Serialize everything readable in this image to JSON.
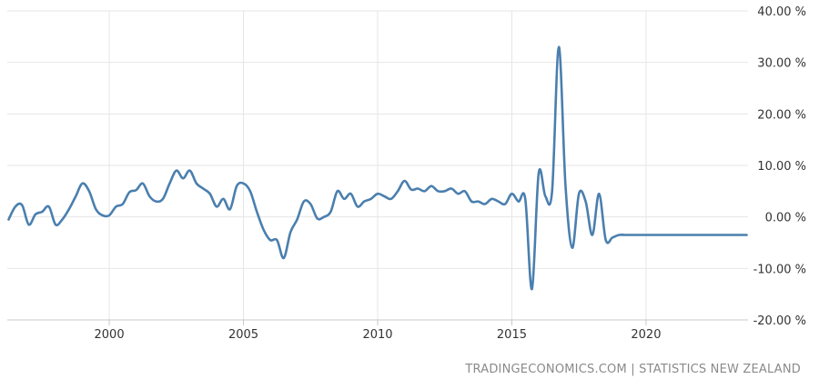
{
  "source_note": "TRADINGECONOMICS.COM | STATISTICS NEW ZEALAND",
  "colors": {
    "line": "#4a7fae",
    "grid": "#e6e6e6",
    "axis": "#c8c8c8",
    "text": "#333333"
  },
  "chart_data": {
    "type": "line",
    "title": "",
    "xlabel": "",
    "ylabel": "",
    "xlim": [
      1996.2,
      2023.8
    ],
    "ylim": [
      -20,
      40
    ],
    "grid": true,
    "x_ticks": [
      {
        "value": 2000,
        "label": "2000"
      },
      {
        "value": 2005,
        "label": "2005"
      },
      {
        "value": 2010,
        "label": "2010"
      },
      {
        "value": 2015,
        "label": "2015"
      },
      {
        "value": 2020,
        "label": "2020"
      }
    ],
    "y_ticks": [
      {
        "value": 40,
        "label": "40.00 %"
      },
      {
        "value": 30,
        "label": "30.00 %"
      },
      {
        "value": 20,
        "label": "20.00 %"
      },
      {
        "value": 10,
        "label": "10.00 %"
      },
      {
        "value": 0,
        "label": "0.00 %"
      },
      {
        "value": -10,
        "label": "-10.00 %"
      },
      {
        "value": -20,
        "label": "-20.00 %"
      }
    ],
    "series": [
      {
        "color": "#4a7fae",
        "x": [
          1996.25,
          1996.5,
          1996.75,
          1997.0,
          1997.25,
          1997.5,
          1997.75,
          1998.0,
          1998.25,
          1998.5,
          1998.75,
          1999.0,
          1999.25,
          1999.5,
          1999.75,
          2000.0,
          2000.25,
          2000.5,
          2000.75,
          2001.0,
          2001.25,
          2001.5,
          2001.75,
          2002.0,
          2002.25,
          2002.5,
          2002.75,
          2003.0,
          2003.25,
          2003.5,
          2003.75,
          2004.0,
          2004.25,
          2004.5,
          2004.75,
          2005.0,
          2005.25,
          2005.5,
          2005.75,
          2006.0,
          2006.25,
          2006.5,
          2006.75,
          2007.0,
          2007.25,
          2007.5,
          2007.75,
          2008.0,
          2008.25,
          2008.5,
          2008.75,
          2009.0,
          2009.25,
          2009.5,
          2009.75,
          2010.0,
          2010.25,
          2010.5,
          2010.75,
          2011.0,
          2011.25,
          2011.5,
          2011.75,
          2012.0,
          2012.25,
          2012.5,
          2012.75,
          2013.0,
          2013.25,
          2013.5,
          2013.75,
          2014.0,
          2014.25,
          2014.5,
          2014.75,
          2015.0,
          2015.25,
          2015.5,
          2015.75,
          2016.0,
          2016.25,
          2016.5,
          2016.75,
          2017.0,
          2017.25,
          2017.5,
          2017.75,
          2018.0,
          2018.25,
          2018.5,
          2018.75,
          2019.0,
          2019.25,
          2019.5,
          2019.75,
          2020.0,
          2020.25,
          2020.5,
          2020.75,
          2021.0,
          2021.25,
          2021.5,
          2021.75,
          2022.0,
          2022.25,
          2022.5,
          2022.75,
          2023.0,
          2023.25,
          2023.5,
          2023.75
        ],
        "values": [
          -0.5,
          2.0,
          2.3,
          -1.5,
          0.5,
          1.0,
          2.0,
          -1.5,
          -0.5,
          1.5,
          4.0,
          6.5,
          5.0,
          1.5,
          0.3,
          0.3,
          2.0,
          2.5,
          4.8,
          5.2,
          6.5,
          4.0,
          3.0,
          3.5,
          6.5,
          9.0,
          7.5,
          9.0,
          6.5,
          5.5,
          4.5,
          2.0,
          3.5,
          1.5,
          6.0,
          6.5,
          5.0,
          1.0,
          -2.5,
          -4.5,
          -4.5,
          -8.0,
          -3.0,
          -0.5,
          3.0,
          2.5,
          -0.3,
          0.0,
          1.0,
          5.0,
          3.5,
          4.5,
          2.0,
          3.0,
          3.5,
          4.5,
          4.0,
          3.5,
          5.0,
          7.0,
          5.3,
          5.5,
          5.0,
          6.0,
          5.0,
          5.0,
          5.5,
          4.5,
          5.0,
          3.0,
          3.0,
          2.5,
          3.5,
          3.0,
          2.5,
          4.5,
          3.0,
          3.5,
          -14.0,
          8.5,
          4.0,
          5.0,
          33.0,
          6.0,
          -6.0,
          4.5,
          3.0,
          -3.5,
          4.5,
          -4.5,
          -4.0,
          -3.5,
          -3.5,
          -3.5,
          -3.5,
          -3.5,
          -3.5,
          -3.5,
          -3.5,
          -3.5,
          -3.5,
          -3.5,
          -3.5,
          -3.5,
          -3.5,
          -3.5,
          -3.5,
          -3.5,
          -3.5,
          -3.5,
          -3.5
        ]
      }
    ]
  }
}
